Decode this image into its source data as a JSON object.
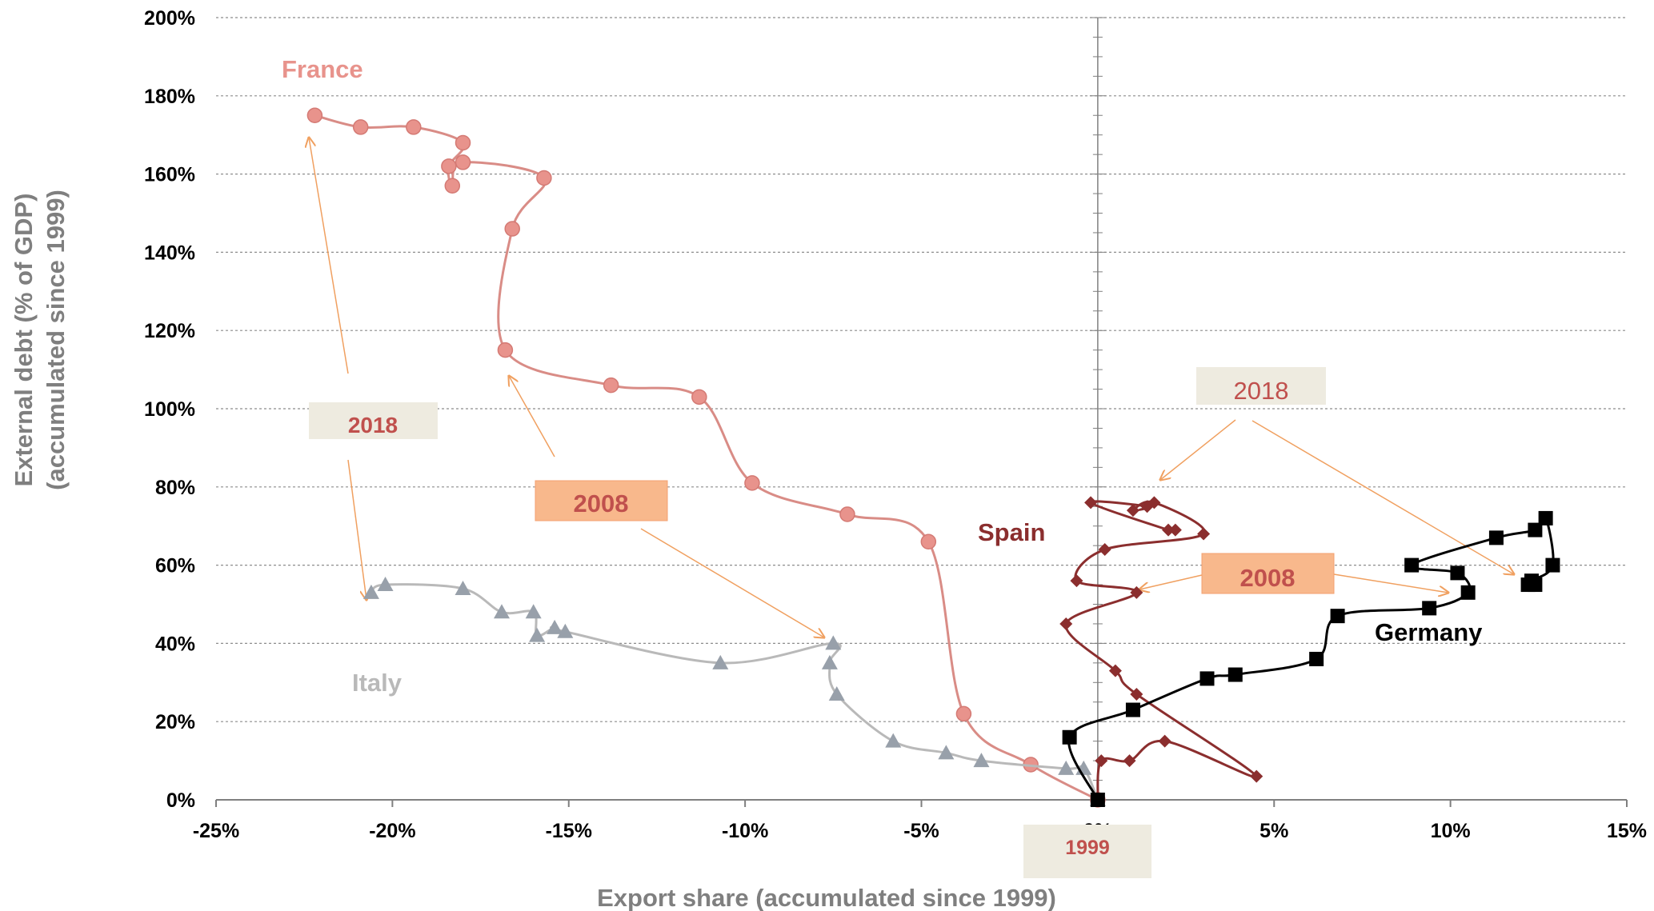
{
  "colors": {
    "france": "#e8938c",
    "france_line": "#d98c86",
    "italy": "#98a0aa",
    "italy_line": "#b9b9b9",
    "spain": "#8b2e2e",
    "germany": "#000000",
    "annotation_arrow": "#f0a060",
    "grid": "#8c8c8c",
    "label_box_grey": "#eeebe0",
    "label_box_orange": "#f8b88c",
    "label_text_red": "#c0504d"
  },
  "chart_data": {
    "type": "scatter",
    "xlabel": "Export share (accumulated since 1999)",
    "ylabel_line1": "External debt (% of GDP)",
    "ylabel_line2": "(accumulated since 1999)",
    "xlim": [
      -25,
      15
    ],
    "ylim": [
      0,
      200
    ],
    "x_ticks": [
      -25,
      -20,
      -15,
      -10,
      -5,
      0,
      5,
      10,
      15
    ],
    "y_ticks": [
      0,
      20,
      40,
      60,
      80,
      100,
      120,
      140,
      160,
      180,
      200
    ],
    "x_tick_labels": [
      "-25%",
      "-20%",
      "-15%",
      "-10%",
      "-5%",
      "0%",
      "5%",
      "10%",
      "15%"
    ],
    "y_tick_labels": [
      "0%",
      "20%",
      "40%",
      "60%",
      "80%",
      "100%",
      "120%",
      "140%",
      "160%",
      "180%",
      "200%"
    ],
    "grid": "horizontal dashed",
    "series": [
      {
        "name": "France",
        "marker": "circle",
        "points": [
          [
            0,
            0
          ],
          [
            -1.9,
            9
          ],
          [
            -3.8,
            22
          ],
          [
            -4.8,
            66
          ],
          [
            -7.1,
            73
          ],
          [
            -9.8,
            81
          ],
          [
            -11.3,
            103
          ],
          [
            -13.8,
            106
          ],
          [
            -16.8,
            115
          ],
          [
            -16.6,
            146
          ],
          [
            -15.7,
            159
          ],
          [
            -18.0,
            163
          ],
          [
            -18.3,
            157
          ],
          [
            -18.4,
            162
          ],
          [
            -18.0,
            168
          ],
          [
            -19.4,
            172
          ],
          [
            -20.9,
            172
          ],
          [
            -22.2,
            175
          ]
        ]
      },
      {
        "name": "Italy",
        "marker": "triangle",
        "points": [
          [
            0,
            0
          ],
          [
            -0.4,
            8
          ],
          [
            -0.9,
            8
          ],
          [
            -3.3,
            10
          ],
          [
            -4.3,
            12
          ],
          [
            -5.8,
            15
          ],
          [
            -7.4,
            27
          ],
          [
            -7.6,
            35
          ],
          [
            -7.5,
            40
          ],
          [
            -10.7,
            35
          ],
          [
            -15.1,
            43
          ],
          [
            -15.4,
            44
          ],
          [
            -15.9,
            42
          ],
          [
            -16.0,
            48
          ],
          [
            -16.9,
            48
          ],
          [
            -18.0,
            54
          ],
          [
            -20.2,
            55
          ],
          [
            -20.6,
            53
          ]
        ]
      },
      {
        "name": "Spain",
        "marker": "diamond",
        "points": [
          [
            0,
            0
          ],
          [
            0.1,
            10
          ],
          [
            0.9,
            10
          ],
          [
            1.9,
            15
          ],
          [
            4.5,
            6
          ],
          [
            1.1,
            27
          ],
          [
            0.5,
            33
          ],
          [
            -0.9,
            45
          ],
          [
            1.1,
            53
          ],
          [
            -0.6,
            56
          ],
          [
            0.2,
            64
          ],
          [
            3.0,
            68
          ],
          [
            1.6,
            76
          ],
          [
            1.0,
            74
          ],
          [
            1.4,
            75
          ],
          [
            -0.2,
            76
          ],
          [
            2.0,
            69
          ],
          [
            2.2,
            69
          ]
        ]
      },
      {
        "name": "Germany",
        "marker": "square",
        "points": [
          [
            0,
            0
          ],
          [
            -0.8,
            16
          ],
          [
            1.0,
            23
          ],
          [
            3.1,
            31
          ],
          [
            3.9,
            32
          ],
          [
            6.2,
            36
          ],
          [
            6.8,
            47
          ],
          [
            9.4,
            49
          ],
          [
            10.5,
            53
          ],
          [
            10.2,
            58
          ],
          [
            8.9,
            60
          ],
          [
            11.3,
            67
          ],
          [
            12.4,
            69
          ],
          [
            12.7,
            72
          ],
          [
            12.9,
            60
          ],
          [
            12.3,
            56
          ],
          [
            12.2,
            55
          ],
          [
            12.4,
            55
          ]
        ]
      }
    ],
    "series_labels": {
      "france": "France",
      "italy": "Italy",
      "spain": "Spain",
      "germany": "Germany"
    },
    "annotations": {
      "left_2018": "2018",
      "left_2008": "2008",
      "right_2018": "2018",
      "right_2008": "2008",
      "origin_1999": "1999"
    }
  }
}
